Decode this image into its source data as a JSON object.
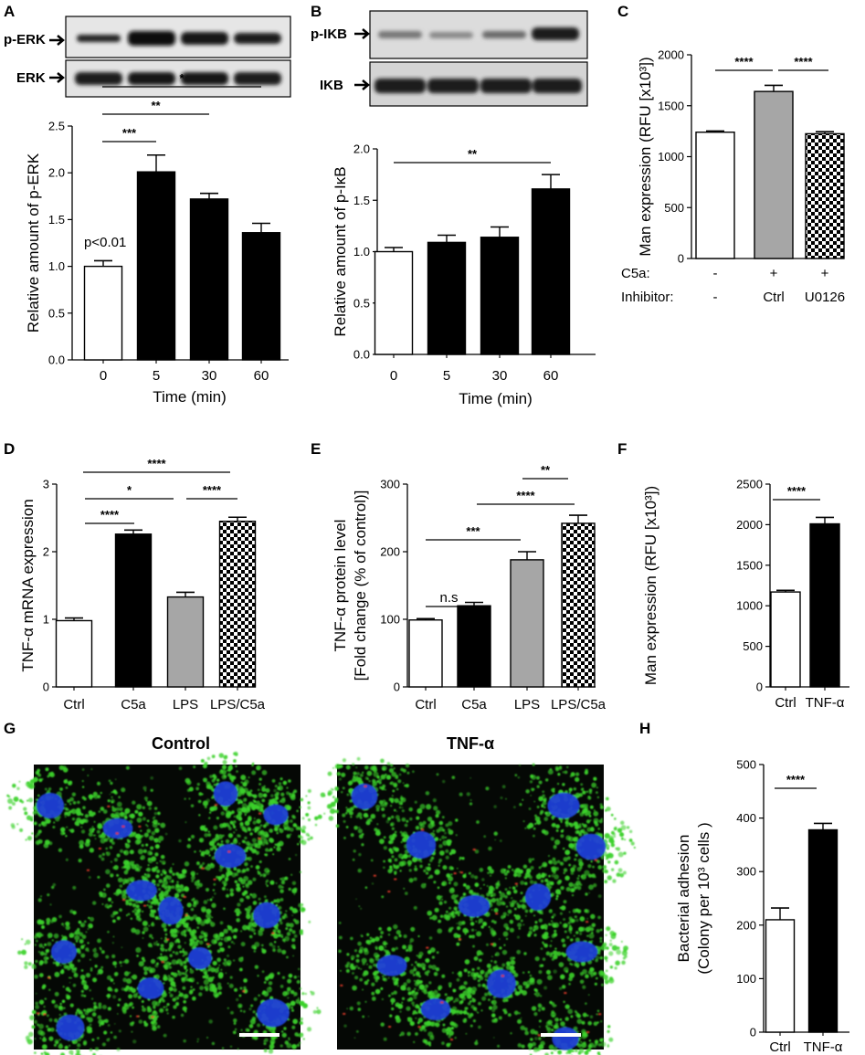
{
  "panels": {
    "A": {
      "label": "A",
      "blot": {
        "top": "p-ERK",
        "bottom": "ERK"
      }
    },
    "B": {
      "label": "B",
      "blot": {
        "top": "p-IKB",
        "bottom": "IKB"
      }
    },
    "C": {
      "label": "C"
    },
    "D": {
      "label": "D"
    },
    "E": {
      "label": "E"
    },
    "F": {
      "label": "F"
    },
    "G": {
      "label": "G",
      "left_title": "Control",
      "right_title": "TNF-α"
    },
    "H": {
      "label": "H"
    }
  },
  "colors": {
    "white": "#ffffff",
    "black": "#000000",
    "gray": "#a6a6a6",
    "checker": "#000000",
    "cell_green": "#3bd12a",
    "nucleus_blue": "#1f3fd6",
    "bacteria_red": "#e53a2a"
  },
  "chart_data": [
    {
      "panel": "A",
      "type": "bar",
      "categories": [
        "0",
        "5",
        "30",
        "60"
      ],
      "values": [
        1.0,
        2.01,
        1.72,
        1.36
      ],
      "errors": [
        0.06,
        0.18,
        0.06,
        0.1
      ],
      "fills": [
        "white",
        "black",
        "black",
        "black"
      ],
      "xlabel": "Time (min)",
      "ylabel": "Relative amount of p-ERK",
      "ylim": [
        0,
        2.5
      ],
      "yticks": [
        "0.0",
        "0.5",
        "1.0",
        "1.5",
        "2.0",
        "2.5"
      ],
      "annotation": "p<0.01",
      "significance": [
        {
          "from": 0,
          "to": 1,
          "label": "***"
        },
        {
          "from": 0,
          "to": 2,
          "label": "**"
        },
        {
          "from": 0,
          "to": 3,
          "label": "*"
        }
      ]
    },
    {
      "panel": "B",
      "type": "bar",
      "categories": [
        "0",
        "5",
        "30",
        "60"
      ],
      "values": [
        1.0,
        1.09,
        1.14,
        1.61
      ],
      "errors": [
        0.04,
        0.07,
        0.1,
        0.14
      ],
      "fills": [
        "white",
        "black",
        "black",
        "black"
      ],
      "xlabel": "Time (min)",
      "ylabel": "Relative amount of p-IκB",
      "ylim": [
        0,
        2.0
      ],
      "yticks": [
        "0.0",
        "0.5",
        "1.0",
        "1.5",
        "2.0"
      ],
      "significance": [
        {
          "from": 0,
          "to": 3,
          "label": "**"
        }
      ]
    },
    {
      "panel": "C",
      "type": "bar",
      "categories": [
        "",
        "",
        ""
      ],
      "values": [
        1240,
        1640,
        1225
      ],
      "errors": [
        12,
        60,
        20
      ],
      "fills": [
        "white",
        "gray",
        "checker"
      ],
      "ylabel": "Man expression (RFU [x10³])",
      "ylim": [
        0,
        2000
      ],
      "yticks": [
        "0",
        "500",
        "1000",
        "1500",
        "2000"
      ],
      "rows": [
        {
          "label": "C5a:",
          "values": [
            "-",
            "+",
            "+"
          ]
        },
        {
          "label": "Inhibitor:",
          "values": [
            "-",
            "Ctrl",
            "U0126"
          ]
        }
      ],
      "significance": [
        {
          "from": 0,
          "to": 1,
          "label": "****"
        },
        {
          "from": 1,
          "to": 2,
          "label": "****"
        }
      ]
    },
    {
      "panel": "D",
      "type": "bar",
      "categories": [
        "Ctrl",
        "C5a",
        "LPS",
        "LPS/C5a"
      ],
      "values": [
        0.98,
        2.26,
        1.33,
        2.45
      ],
      "errors": [
        0.04,
        0.06,
        0.07,
        0.06
      ],
      "fills": [
        "white",
        "black",
        "gray",
        "checker"
      ],
      "ylabel": "TNF-α mRNA expression",
      "ylim": [
        0,
        3
      ],
      "yticks": [
        "0",
        "1",
        "2",
        "3"
      ],
      "significance": [
        {
          "from": 0,
          "to": 1,
          "label": "****"
        },
        {
          "from": 0,
          "to": 2,
          "label": "*"
        },
        {
          "from": 2,
          "to": 3,
          "label": "****"
        },
        {
          "from": 0,
          "to": 3,
          "label": "****"
        }
      ]
    },
    {
      "panel": "E",
      "type": "bar",
      "categories": [
        "Ctrl",
        "C5a",
        "LPS",
        "LPS/C5a"
      ],
      "values": [
        99,
        120,
        188,
        242
      ],
      "errors": [
        2,
        5,
        12,
        12
      ],
      "fills": [
        "white",
        "black",
        "gray",
        "checker"
      ],
      "ylabel": "TNF-α protein level [Fold change (% of control)]",
      "ylabel_lines": [
        "TNF-α protein level",
        "[Fold change (% of control)]"
      ],
      "ylim": [
        0,
        300
      ],
      "yticks": [
        "0",
        "100",
        "200",
        "300"
      ],
      "significance": [
        {
          "from": 0,
          "to": 1,
          "label": "n.s"
        },
        {
          "from": 0,
          "to": 2,
          "label": "***"
        },
        {
          "from": 1,
          "to": 3,
          "label": "****"
        },
        {
          "from": 2,
          "to": 3,
          "label": "**"
        }
      ]
    },
    {
      "panel": "F",
      "type": "bar",
      "categories": [
        "Ctrl",
        "TNF-α"
      ],
      "values": [
        1170,
        2010
      ],
      "errors": [
        20,
        80
      ],
      "fills": [
        "white",
        "black"
      ],
      "ylabel": "Man expression (RFU [x10³])",
      "ylim": [
        0,
        2500
      ],
      "yticks": [
        "0",
        "500",
        "1000",
        "1500",
        "2000",
        "2500"
      ],
      "significance": [
        {
          "from": 0,
          "to": 1,
          "label": "****"
        }
      ]
    },
    {
      "panel": "H",
      "type": "bar",
      "categories": [
        "Ctrl",
        "TNF-α"
      ],
      "values": [
        210,
        378
      ],
      "errors": [
        22,
        12
      ],
      "fills": [
        "white",
        "black"
      ],
      "ylabel": "Bacterial adhesion (Colony per 10³ cells )",
      "ylabel_lines": [
        "Bacterial adhesion",
        "(Colony per 10³ cells )"
      ],
      "ylim": [
        0,
        500
      ],
      "yticks": [
        "0",
        "100",
        "200",
        "300",
        "400",
        "500"
      ],
      "significance": [
        {
          "from": 0,
          "to": 1,
          "label": "****"
        }
      ]
    }
  ]
}
